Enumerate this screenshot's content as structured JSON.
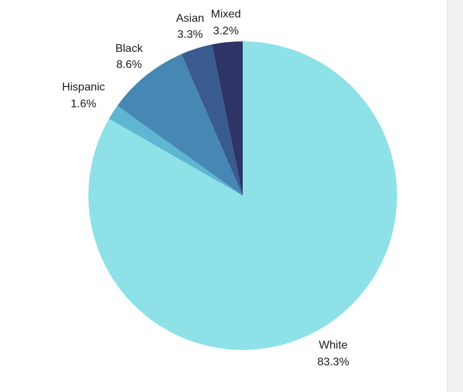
{
  "chart_data": {
    "type": "pie",
    "start_angle_deg": 90,
    "direction": "clockwise",
    "slices": [
      {
        "label": "White",
        "value": 83.3,
        "value_label": "83.3%",
        "color": "#8fe1e8"
      },
      {
        "label": "Hispanic",
        "value": 1.6,
        "value_label": "1.6%",
        "color": "#5fb6d2"
      },
      {
        "label": "Black",
        "value": 8.6,
        "value_label": "8.6%",
        "color": "#4787b3"
      },
      {
        "label": "Asian",
        "value": 3.3,
        "value_label": "3.3%",
        "color": "#3a5b8f"
      },
      {
        "label": "Mixed",
        "value": 3.2,
        "value_label": "3.2%",
        "color": "#2e3465"
      }
    ],
    "legend": "none"
  }
}
